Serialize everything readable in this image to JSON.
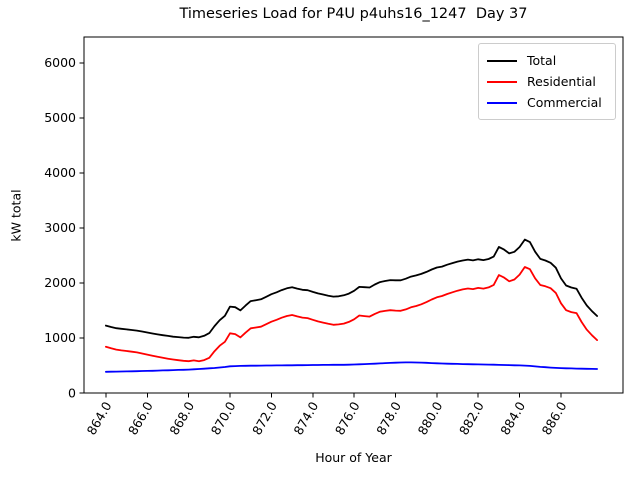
{
  "chart_data": {
    "type": "line",
    "title": "Timeseries Load for P4U p4uhs16_1247  Day 37",
    "xlabel": "Hour of Year",
    "ylabel": "kW total",
    "xlim": [
      862.94,
      889.0
    ],
    "ylim": [
      0,
      6470
    ],
    "grid": false,
    "legend_position": "upper right",
    "x_tick_values": [
      864,
      866,
      868,
      870,
      872,
      874,
      876,
      878,
      880,
      882,
      884,
      886
    ],
    "x_tick_labels": [
      "864.0",
      "866.0",
      "868.0",
      "870.0",
      "872.0",
      "874.0",
      "876.0",
      "878.0",
      "880.0",
      "882.0",
      "884.0",
      "886.0"
    ],
    "x_tick_rotation_deg": 60,
    "y_tick_values": [
      0,
      1000,
      2000,
      3000,
      4000,
      5000,
      6000
    ],
    "y_tick_labels": [
      "0",
      "1000",
      "2000",
      "3000",
      "4000",
      "5000",
      "6000"
    ],
    "x": [
      864.0,
      864.25,
      864.5,
      864.75,
      865.0,
      865.25,
      865.5,
      865.75,
      866.0,
      866.25,
      866.5,
      866.75,
      867.0,
      867.25,
      867.5,
      867.75,
      868.0,
      868.25,
      868.5,
      868.75,
      869.0,
      869.25,
      869.5,
      869.75,
      870.0,
      870.25,
      870.5,
      870.75,
      871.0,
      871.25,
      871.5,
      871.75,
      872.0,
      872.25,
      872.5,
      872.75,
      873.0,
      873.25,
      873.5,
      873.75,
      874.0,
      874.25,
      874.5,
      874.75,
      875.0,
      875.25,
      875.5,
      875.75,
      876.0,
      876.25,
      876.5,
      876.75,
      877.0,
      877.25,
      877.5,
      877.75,
      878.0,
      878.25,
      878.5,
      878.75,
      879.0,
      879.25,
      879.5,
      879.75,
      880.0,
      880.25,
      880.5,
      880.75,
      881.0,
      881.25,
      881.5,
      881.75,
      882.0,
      882.25,
      882.5,
      882.75,
      883.0,
      883.25,
      883.5,
      883.75,
      884.0,
      884.25,
      884.5,
      884.75,
      885.0,
      885.25,
      885.5,
      885.75,
      886.0,
      886.25,
      886.5,
      886.75,
      887.0,
      887.25,
      887.5,
      887.75
    ],
    "series": [
      {
        "name": "Total",
        "color": "#000000",
        "values": [
          1225,
          1199,
          1177,
          1166,
          1156,
          1145,
          1134,
          1117,
          1099,
          1082,
          1065,
          1050,
          1037,
          1024,
          1016,
          1007,
          1003,
          1022,
          1012,
          1040,
          1088,
          1215,
          1323,
          1403,
          1570,
          1559,
          1502,
          1589,
          1671,
          1687,
          1703,
          1749,
          1795,
          1831,
          1870,
          1903,
          1922,
          1897,
          1876,
          1869,
          1838,
          1811,
          1790,
          1769,
          1752,
          1758,
          1775,
          1807,
          1858,
          1929,
          1923,
          1917,
          1971,
          2016,
          2035,
          2052,
          2049,
          2048,
          2077,
          2115,
          2137,
          2164,
          2200,
          2244,
          2280,
          2298,
          2332,
          2360,
          2388,
          2408,
          2424,
          2410,
          2430,
          2416,
          2436,
          2479,
          2656,
          2607,
          2537,
          2566,
          2653,
          2788,
          2742,
          2568,
          2438,
          2408,
          2367,
          2277,
          2082,
          1954,
          1917,
          1896,
          1732,
          1590,
          1486,
          1399
        ]
      },
      {
        "name": "Residential",
        "color": "#ff0000",
        "values": [
          840,
          812,
          788,
          775,
          763,
          750,
          737,
          718,
          698,
          678,
          658,
          640,
          624,
          608,
          597,
          585,
          578,
          592,
          576,
          598,
          640,
          760,
          860,
          930,
          1085,
          1070,
          1010,
          1095,
          1175,
          1190,
          1205,
          1250,
          1295,
          1330,
          1368,
          1400,
          1418,
          1392,
          1370,
          1362,
          1330,
          1302,
          1280,
          1258,
          1240,
          1246,
          1262,
          1292,
          1340,
          1408,
          1398,
          1388,
          1438,
          1478,
          1492,
          1505,
          1498,
          1494,
          1520,
          1558,
          1582,
          1612,
          1652,
          1700,
          1740,
          1762,
          1800,
          1830,
          1860,
          1882,
          1900,
          1888,
          1910,
          1898,
          1920,
          1965,
          2145,
          2098,
          2030,
          2062,
          2152,
          2290,
          2250,
          2085,
          1963,
          1940,
          1905,
          1820,
          1630,
          1505,
          1470,
          1452,
          1290,
          1150,
          1048,
          962
        ]
      },
      {
        "name": "Commercial",
        "color": "#0000ff",
        "values": [
          385,
          387,
          389,
          391,
          393,
          395,
          397,
          399,
          401,
          404,
          407,
          410,
          413,
          416,
          419,
          422,
          425,
          430,
          436,
          442,
          448,
          455,
          463,
          473,
          485,
          489,
          492,
          494,
          496,
          497,
          498,
          499,
          500,
          501,
          502,
          503,
          504,
          505,
          506,
          507,
          508,
          509,
          510,
          511,
          512,
          512,
          513,
          515,
          518,
          521,
          525,
          529,
          533,
          538,
          543,
          547,
          551,
          554,
          557,
          557,
          555,
          552,
          548,
          544,
          540,
          536,
          532,
          530,
          528,
          526,
          524,
          522,
          520,
          518,
          516,
          514,
          511,
          509,
          507,
          504,
          501,
          498,
          492,
          483,
          475,
          468,
          462,
          457,
          452,
          449,
          447,
          444,
          442,
          440,
          438,
          437
        ]
      }
    ]
  }
}
